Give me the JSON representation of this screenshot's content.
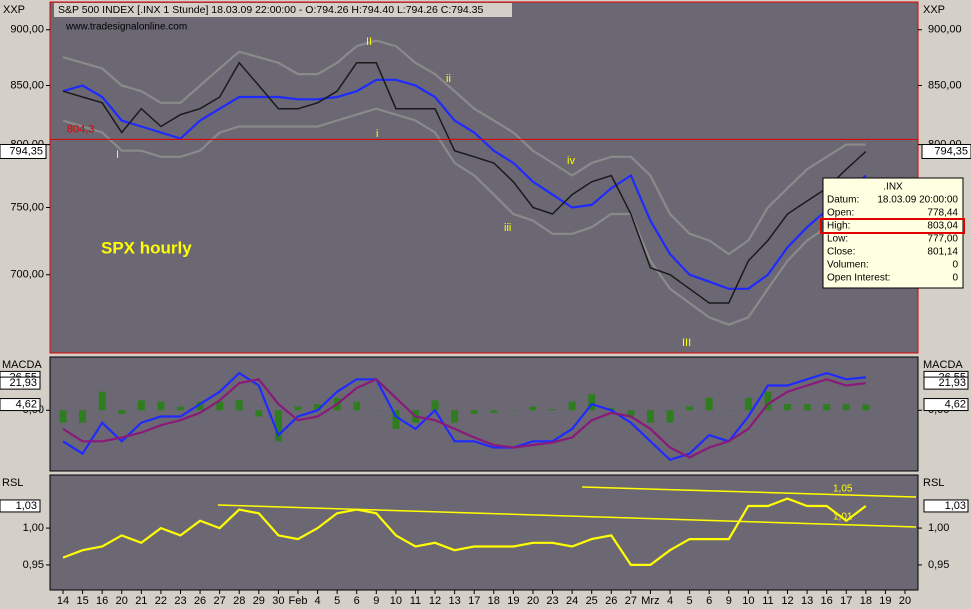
{
  "chart_data": [
    {
      "type": "line",
      "title": "S&P 500 INDEX [.INX  1 Stunde] 18.03.09 22:00:00 - O:794.26 H:794.40 L:794.26 C:794.35",
      "subtitle": "www.tradesignalonline.com",
      "symbol": "XXP",
      "annotation": "SPX hourly",
      "wave_labels": [
        "I",
        "i",
        "II",
        "ii",
        "iii",
        "iv",
        "III"
      ],
      "categories": [
        "14",
        "15",
        "16",
        "20",
        "21",
        "22",
        "23",
        "26",
        "27",
        "28",
        "29",
        "30",
        "Feb",
        "4",
        "5",
        "6",
        "9",
        "10",
        "11",
        "12",
        "13",
        "17",
        "18",
        "19",
        "20",
        "23",
        "24",
        "25",
        "26",
        "27",
        "Mrz",
        "4",
        "5",
        "6",
        "9",
        "10",
        "11",
        "12",
        "13",
        "16",
        "17",
        "18",
        "19",
        "20"
      ],
      "series": [
        {
          "color": "#8a8a8a",
          "values": [
            875,
            870,
            865,
            850,
            845,
            835,
            835,
            850,
            865,
            880,
            875,
            870,
            860,
            860,
            870,
            885,
            890,
            885,
            870,
            860,
            845,
            830,
            820,
            810,
            795,
            785,
            775,
            785,
            790,
            790,
            775,
            745,
            730,
            725,
            715,
            725,
            750,
            765,
            780,
            790,
            800,
            800,
            null,
            null
          ]
        },
        {
          "color": "#8a8a8a",
          "values": [
            820,
            815,
            810,
            795,
            795,
            790,
            790,
            795,
            810,
            815,
            815,
            815,
            815,
            815,
            820,
            825,
            830,
            825,
            820,
            810,
            785,
            775,
            760,
            745,
            740,
            730,
            730,
            735,
            745,
            745,
            710,
            690,
            680,
            670,
            665,
            670,
            690,
            710,
            725,
            735,
            745,
            755,
            null,
            null
          ]
        },
        {
          "color": "#1f2aff",
          "values": [
            845,
            850,
            840,
            820,
            815,
            810,
            805,
            820,
            830,
            840,
            840,
            840,
            838,
            838,
            840,
            845,
            855,
            855,
            850,
            840,
            820,
            810,
            795,
            785,
            770,
            760,
            750,
            752,
            765,
            775,
            740,
            715,
            700,
            695,
            690,
            690,
            700,
            720,
            735,
            748,
            760,
            775,
            null,
            null
          ]
        },
        {
          "color": "#1a1a1a",
          "values": [
            845,
            840,
            835,
            810,
            830,
            815,
            825,
            830,
            840,
            870,
            850,
            830,
            830,
            835,
            845,
            870,
            870,
            830,
            830,
            830,
            795,
            790,
            785,
            770,
            750,
            745,
            760,
            770,
            775,
            745,
            705,
            700,
            690,
            680,
            680,
            710,
            725,
            745,
            755,
            765,
            780,
            794.35,
            null,
            null
          ]
        }
      ],
      "log_scale": true,
      "ylim": [
        646,
        926
      ],
      "yticks": [
        {
          "value": 900,
          "label": "900,00"
        },
        {
          "value": 850,
          "label": "850,00"
        },
        {
          "value": 800,
          "label": "800,00"
        },
        {
          "value": 750,
          "label": "750,00"
        },
        {
          "value": 700,
          "label": "700,00"
        }
      ],
      "ref_line": {
        "value": 804.3,
        "label": "804,3"
      },
      "last_value": {
        "value": 794.35,
        "label": "794,35"
      },
      "tooltip": {
        "title": ".INX",
        "rows": [
          [
            "Datum:",
            "18.03.09 20:00:00"
          ],
          [
            "Open:",
            "778,44"
          ],
          [
            "High:",
            "803,04"
          ],
          [
            "Low:",
            "777,00"
          ],
          [
            "Close:",
            "801,14"
          ],
          [
            "Volumen:",
            "0"
          ],
          [
            "Open Interest:",
            "0"
          ]
        ]
      }
    },
    {
      "type": "line",
      "title": "MACDA",
      "histogram": {
        "color": "#2e7d1e",
        "values": [
          -10,
          -10,
          15,
          -3,
          8,
          7,
          3,
          7,
          7,
          8,
          -5,
          -25,
          3,
          5,
          10,
          7,
          0,
          -15,
          -10,
          8,
          -10,
          -3,
          -2,
          0,
          3,
          1,
          7,
          13,
          2,
          -5,
          -10,
          -10,
          3,
          10,
          0,
          10,
          15,
          5,
          5,
          5,
          5,
          4.62,
          null,
          null
        ]
      },
      "series": [
        {
          "color": "#1f2aff",
          "values": [
            -25,
            -35,
            -10,
            -25,
            -10,
            -5,
            -5,
            5,
            15,
            30,
            20,
            -20,
            -5,
            0,
            15,
            25,
            25,
            -5,
            -15,
            0,
            -25,
            -25,
            -30,
            -30,
            -25,
            -25,
            -15,
            5,
            0,
            -10,
            -25,
            -40,
            -35,
            -20,
            -25,
            -5,
            20,
            20,
            25,
            30,
            25,
            26.55,
            null,
            null
          ]
        },
        {
          "color": "#8a1a7a",
          "values": [
            -15,
            -25,
            -25,
            -22,
            -18,
            -12,
            -8,
            -2,
            8,
            22,
            25,
            5,
            -8,
            -5,
            5,
            18,
            25,
            10,
            -5,
            -8,
            -15,
            -22,
            -28,
            -30,
            -28,
            -26,
            -22,
            -8,
            -2,
            -5,
            -15,
            -30,
            -38,
            -30,
            -25,
            -15,
            5,
            15,
            20,
            25,
            20,
            21.93,
            null,
            null
          ]
        }
      ],
      "ylim": [
        -49,
        43
      ],
      "yticks": [
        {
          "value": 0,
          "label": "0,00"
        }
      ],
      "value_boxes": [
        {
          "value": 26.55,
          "label": "26,55"
        },
        {
          "value": 21.93,
          "label": "21,93"
        },
        {
          "value": 4.62,
          "label": "4,62"
        }
      ]
    },
    {
      "type": "line",
      "title": "RSL",
      "series": [
        {
          "color": "#ffff00",
          "values": [
            0.96,
            0.97,
            0.975,
            0.99,
            0.98,
            1.0,
            0.99,
            1.01,
            1.0,
            1.025,
            1.02,
            0.99,
            0.985,
            1.0,
            1.02,
            1.025,
            1.02,
            0.99,
            0.975,
            0.98,
            0.97,
            0.975,
            0.975,
            0.975,
            0.98,
            0.98,
            0.975,
            0.985,
            0.99,
            0.95,
            0.95,
            0.97,
            0.985,
            0.985,
            0.985,
            1.03,
            1.03,
            1.04,
            1.03,
            1.03,
            1.01,
            1.03,
            null,
            null
          ]
        }
      ],
      "ylim": [
        0.916,
        1.072
      ],
      "yticks": [
        {
          "value": 1.0,
          "label": "1,00"
        },
        {
          "value": 0.95,
          "label": "0,95"
        }
      ],
      "value_boxes": [
        {
          "value": 1.03,
          "label": "1,03"
        }
      ],
      "trend_labels": [
        "1,05",
        "1,01"
      ]
    }
  ]
}
